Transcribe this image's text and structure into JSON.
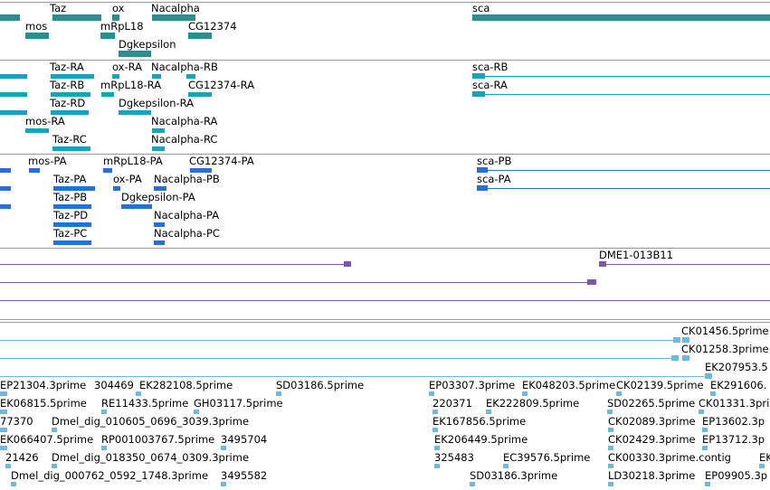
{
  "gene_track": {
    "labels": [
      "Taz",
      "ox",
      "Nacalpha",
      "sca",
      "mos",
      "mRpL18",
      "CG12374",
      "Dgkepsilon"
    ]
  },
  "mrna_track": {
    "labels": [
      "Taz-RA",
      "ox-RA",
      "Nacalpha-RB",
      "sca-RB",
      "Taz-RB",
      "mRpL18-RA",
      "CG12374-RA",
      "sca-RA",
      "Taz-RD",
      "Dgkepsilon-RA",
      "mos-RA",
      "Nacalpha-RA",
      "Taz-RC",
      "Nacalpha-RC"
    ]
  },
  "protein_track": {
    "labels": [
      "mos-PA",
      "mRpL18-PA",
      "CG12374-PA",
      "sca-PB",
      "Taz-PA",
      "ox-PA",
      "Nacalpha-PB",
      "sca-PA",
      "Taz-PB",
      "Dgkepsilon-PA",
      "Taz-PD",
      "Nacalpha-PA",
      "Taz-PC",
      "Nacalpha-PC"
    ]
  },
  "clone_track": {
    "labels": [
      "DME1-013B11"
    ]
  },
  "est_track": {
    "labels": [
      "CK01456.5prime",
      "CK01258.3prime",
      "EK207953.5",
      "EP21304.3prime",
      "304469",
      "EK282108.5prime",
      "SD03186.5prime",
      "EP03307.3prime",
      "EK048203.5prime",
      "CK02139.5prime",
      "EK291606.",
      "EK06815.5prime",
      "RE11433.5prime",
      "GH03117.5prime",
      "220371",
      "EK222809.5prime",
      "SD02265.5prime",
      "CK01331.3prime",
      "77370",
      "Dmel_dig_010605_0696_3039.3prime",
      "EK167856.5prime",
      "CK02089.3prime",
      "EP13602.3p",
      "EK066407.5prime",
      "RP001003767.5prime",
      "3495704",
      "EK206449.5prime",
      "CK02429.3prime",
      "EP13712.3p",
      "21426",
      "Dmel_dig_018350_0674_0309.3prime",
      "325483",
      "EC39576.5prime",
      "CK00330.3prime.contig",
      "EK",
      "Dmel_dig_000762_0592_1748.3prime",
      "3495582",
      "SD03186.3prime",
      "LD30218.3prime",
      "EP09905.3p"
    ]
  },
  "colors": {
    "gene": "#2f8c8c",
    "mrna": "#1aa3b8",
    "protein": "#2a6fd6",
    "clone": "#7a5aa8",
    "est": "#6fb8e0",
    "separator": "#9a9a9a"
  }
}
